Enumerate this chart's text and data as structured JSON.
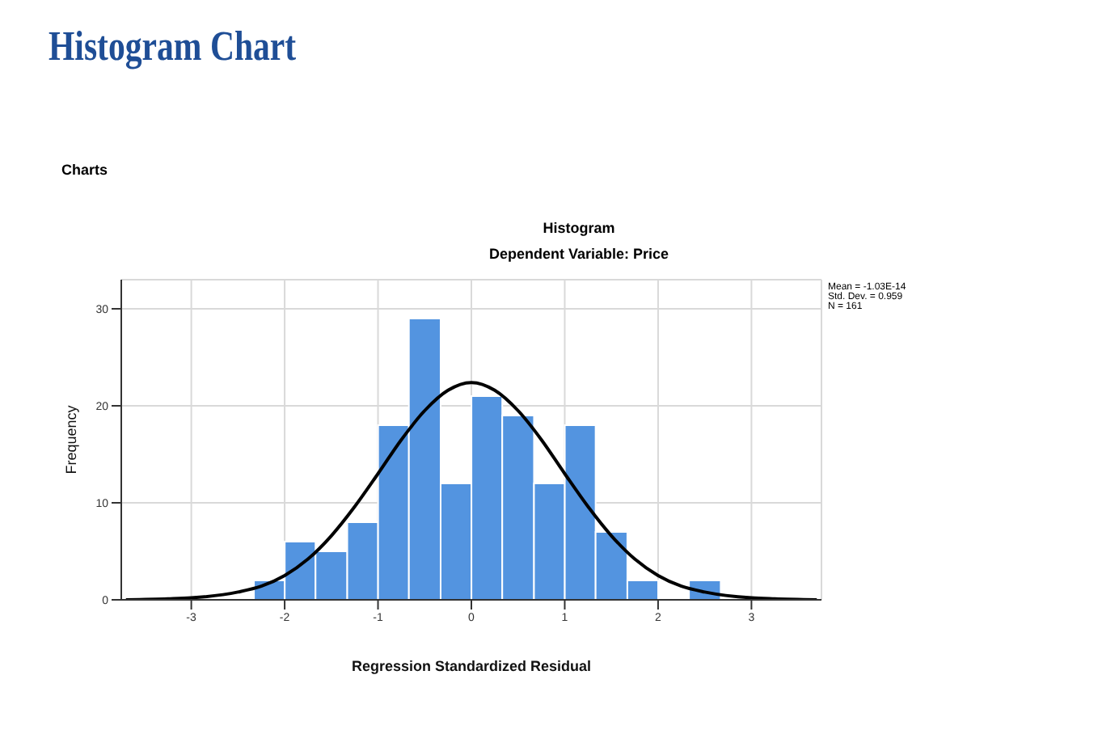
{
  "chart_data": {
    "type": "histogram",
    "title": "Histogram",
    "subtitle": "Dependent Variable: Price",
    "xlabel": "Regression Standardized Residual",
    "ylabel": "Frequency",
    "annotations": [
      "Histogram Chart",
      "Charts",
      "Mean = -1.03E-14",
      "Std. Dev. = 0.959",
      "N = 161"
    ],
    "bins": [
      -2.33,
      -2,
      -1.67,
      -1.33,
      -1,
      -0.67,
      -0.33,
      0,
      0.33,
      0.67,
      1,
      1.33,
      1.67,
      2,
      2.33,
      2.67
    ],
    "values": [
      2,
      6,
      5,
      8,
      18,
      29,
      12,
      21,
      19,
      12,
      18,
      7,
      2,
      0,
      2
    ],
    "color": "#5394e0",
    "series": [
      {
        "type": "line",
        "color": "#000000",
        "x": [
          -3.7,
          -3.25,
          -3,
          -2.5,
          -2.25,
          -2,
          -1.75,
          -1.5,
          -1.25,
          -1,
          -0.75,
          -0.5,
          -0.25,
          0,
          0.25,
          0.5,
          0.75,
          1,
          1.25,
          1.5,
          1.75,
          2,
          2.25,
          2.5,
          3,
          3.25,
          3.7
        ],
        "values": [
          0,
          0.1,
          0.2,
          0.8,
          1.4,
          2.5,
          4.2,
          6.6,
          9.6,
          13,
          16.5,
          19.5,
          21.6,
          22.4,
          21.6,
          19.5,
          16.5,
          13,
          9.6,
          6.6,
          4.2,
          2.5,
          1.4,
          0.8,
          0.2,
          0.1,
          0
        ]
      }
    ],
    "xlim": [
      -3.75,
      3.75
    ],
    "xticks": [
      -3,
      -2,
      -1,
      0,
      1,
      2,
      3
    ],
    "ylim": [
      0,
      33
    ],
    "yticks": [
      0,
      10,
      20,
      30
    ],
    "grid": true,
    "legend": false,
    "marker": "none",
    "line_style": "solid"
  }
}
